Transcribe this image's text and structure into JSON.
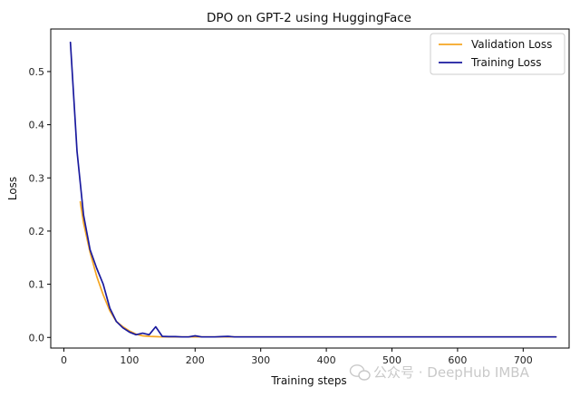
{
  "chart_data": {
    "type": "line",
    "title": "DPO on GPT-2 using HuggingFace",
    "xlabel": "Training steps",
    "ylabel": "Loss",
    "xlim": [
      -20,
      770
    ],
    "ylim": [
      -0.02,
      0.58
    ],
    "xticks": [
      0,
      100,
      200,
      300,
      400,
      500,
      600,
      700
    ],
    "yticks": [
      0.0,
      0.1,
      0.2,
      0.3,
      0.4,
      0.5
    ],
    "ytick_labels": [
      "0.0",
      "0.1",
      "0.2",
      "0.3",
      "0.4",
      "0.5"
    ],
    "legend_position": "top-right",
    "grid": false,
    "series": [
      {
        "name": "Validation Loss",
        "color": "#f5a623",
        "x": [
          25,
          30,
          40,
          50,
          60,
          70,
          80,
          90,
          100,
          110,
          120,
          130,
          140,
          150,
          200,
          250,
          300,
          400,
          500,
          600,
          750
        ],
        "y": [
          0.255,
          0.215,
          0.16,
          0.115,
          0.08,
          0.05,
          0.03,
          0.02,
          0.012,
          0.006,
          0.003,
          0.002,
          0.0015,
          0.001,
          0.001,
          0.001,
          0.001,
          0.001,
          0.001,
          0.001,
          0.001
        ]
      },
      {
        "name": "Training Loss",
        "color": "#1a1a9e",
        "x": [
          10,
          20,
          30,
          40,
          50,
          60,
          70,
          80,
          90,
          100,
          110,
          120,
          130,
          140,
          150,
          160,
          170,
          180,
          190,
          200,
          210,
          220,
          230,
          240,
          250,
          260,
          270,
          300,
          350,
          400,
          450,
          500,
          550,
          600,
          650,
          700,
          750
        ],
        "y": [
          0.555,
          0.35,
          0.23,
          0.165,
          0.13,
          0.1,
          0.055,
          0.03,
          0.018,
          0.01,
          0.005,
          0.008,
          0.005,
          0.02,
          0.002,
          0.0015,
          0.0015,
          0.001,
          0.001,
          0.003,
          0.001,
          0.001,
          0.001,
          0.0015,
          0.002,
          0.001,
          0.001,
          0.001,
          0.001,
          0.001,
          0.001,
          0.001,
          0.001,
          0.001,
          0.001,
          0.001,
          0.001
        ]
      }
    ]
  },
  "watermark": {
    "text": "公众号 · DeepHub IMBA",
    "icon": "wechat-icon"
  }
}
